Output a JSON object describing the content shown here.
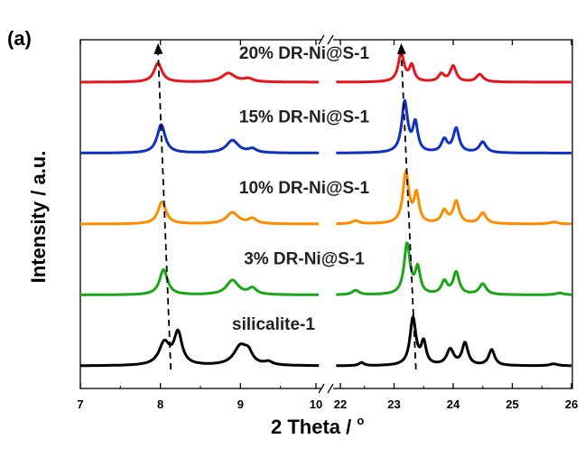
{
  "chart_data": {
    "type": "line",
    "panel_label": "(a)",
    "xlabel": "2 Theta / ",
    "xlabel_degree": "o",
    "ylabel": "Intensity / a.u.",
    "x_axis_break": {
      "left_segment": [
        7,
        10
      ],
      "right_segment": [
        22,
        26
      ]
    },
    "xticks_left": [
      "7",
      "8",
      "9",
      "10"
    ],
    "xticks_right": [
      "22",
      "23",
      "24",
      "25",
      "26"
    ],
    "color_reference": {
      "black": "#000000",
      "green": "#1aa51a",
      "orange": "#ff8c00",
      "blue": "#1030c0",
      "red": "#e8141e"
    },
    "series": [
      {
        "name": "silicalite-1",
        "color": "#000000",
        "offset": 0,
        "peaks_left": [
          [
            8.05,
            0.35,
            0.08
          ],
          [
            8.22,
            0.5,
            0.06
          ],
          [
            9.0,
            0.3,
            0.1
          ],
          [
            9.1,
            0.15,
            0.06
          ],
          [
            9.35,
            0.05,
            0.06
          ]
        ],
        "peaks_right": [
          [
            22.45,
            0.05,
            0.05
          ],
          [
            23.32,
            0.75,
            0.06
          ],
          [
            23.5,
            0.35,
            0.05
          ],
          [
            23.95,
            0.25,
            0.07
          ],
          [
            24.2,
            0.35,
            0.06
          ],
          [
            24.65,
            0.25,
            0.06
          ],
          [
            25.7,
            0.03,
            0.08
          ]
        ]
      },
      {
        "name": "3% DR-Ni@S-1",
        "color": "#1aa51a",
        "offset": 1,
        "peaks_left": [
          [
            8.04,
            0.4,
            0.06
          ],
          [
            8.9,
            0.23,
            0.09
          ],
          [
            9.15,
            0.1,
            0.06
          ]
        ],
        "peaks_right": [
          [
            22.35,
            0.07,
            0.07
          ],
          [
            23.22,
            0.8,
            0.06
          ],
          [
            23.4,
            0.4,
            0.05
          ],
          [
            23.85,
            0.2,
            0.06
          ],
          [
            24.05,
            0.35,
            0.06
          ],
          [
            24.5,
            0.17,
            0.07
          ],
          [
            25.8,
            0.03,
            0.08
          ]
        ]
      },
      {
        "name": "10% DR-Ni@S-1",
        "color": "#ff8c00",
        "offset": 2,
        "peaks_left": [
          [
            8.02,
            0.35,
            0.06
          ],
          [
            8.9,
            0.18,
            0.09
          ],
          [
            9.15,
            0.08,
            0.06
          ]
        ],
        "peaks_right": [
          [
            22.35,
            0.05,
            0.07
          ],
          [
            23.2,
            0.8,
            0.06
          ],
          [
            23.38,
            0.45,
            0.05
          ],
          [
            23.85,
            0.2,
            0.06
          ],
          [
            24.05,
            0.35,
            0.06
          ],
          [
            24.5,
            0.17,
            0.07
          ],
          [
            25.7,
            0.03,
            0.08
          ]
        ]
      },
      {
        "name": "15% DR-Ni@S-1",
        "color": "#1030c0",
        "offset": 3,
        "peaks_left": [
          [
            8.01,
            0.45,
            0.06
          ],
          [
            8.9,
            0.2,
            0.09
          ],
          [
            9.15,
            0.06,
            0.06
          ]
        ],
        "peaks_right": [
          [
            23.18,
            0.8,
            0.06
          ],
          [
            23.36,
            0.45,
            0.05
          ],
          [
            23.85,
            0.2,
            0.06
          ],
          [
            24.05,
            0.38,
            0.06
          ],
          [
            24.5,
            0.17,
            0.07
          ]
        ]
      },
      {
        "name": "20% DR-Ni@S-1",
        "color": "#e8141e",
        "offset": 4,
        "peaks_left": [
          [
            7.97,
            0.3,
            0.06
          ],
          [
            8.85,
            0.14,
            0.1
          ],
          [
            9.1,
            0.05,
            0.07
          ]
        ],
        "peaks_right": [
          [
            23.12,
            0.45,
            0.06
          ],
          [
            23.3,
            0.25,
            0.05
          ],
          [
            23.8,
            0.12,
            0.06
          ],
          [
            24.0,
            0.25,
            0.06
          ],
          [
            24.45,
            0.12,
            0.07
          ]
        ]
      }
    ],
    "trend_lines": [
      {
        "segment": "left",
        "from": {
          "x": 8.13,
          "series_offset": -0.05
        },
        "to": {
          "x": 7.97,
          "series_offset": 4.55
        }
      },
      {
        "segment": "right",
        "from": {
          "x": 23.37,
          "series_offset": -0.05
        },
        "to": {
          "x": 23.12,
          "series_offset": 4.55
        }
      }
    ]
  }
}
